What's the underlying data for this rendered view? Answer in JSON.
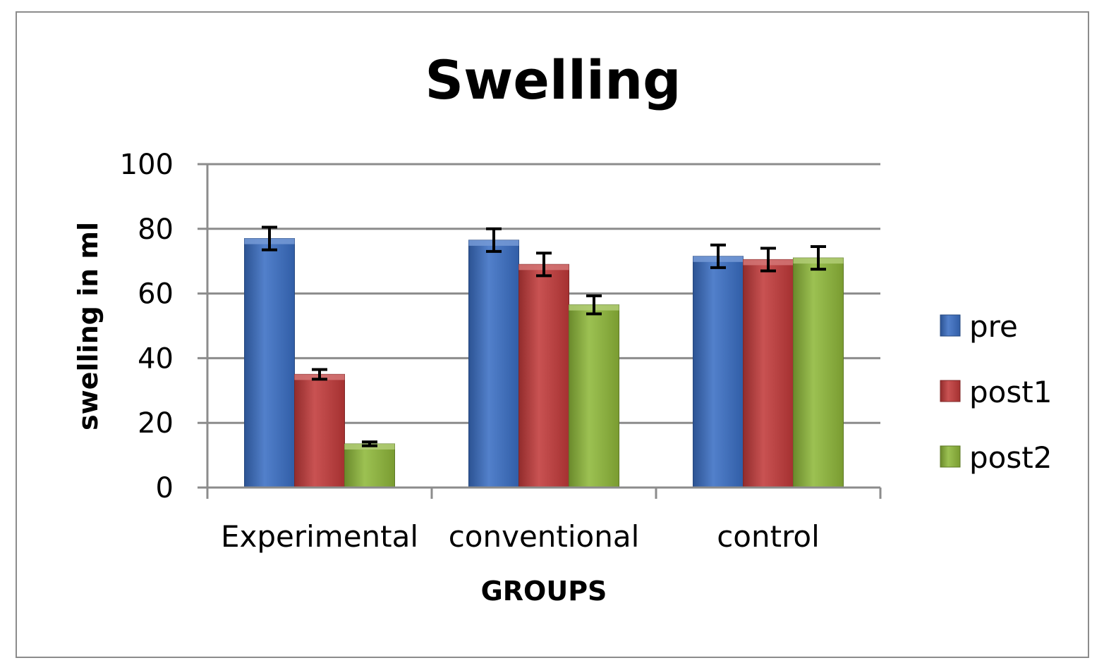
{
  "chart_data": {
    "type": "bar",
    "title": "Swelling",
    "xlabel": "GROUPS",
    "ylabel": "swelling in ml",
    "categories": [
      "Experimental",
      "conventional",
      "control"
    ],
    "ylim": [
      0,
      100
    ],
    "yticks": [
      0,
      20,
      40,
      60,
      80,
      100
    ],
    "grid": true,
    "legend_position": "right",
    "error_bars": true,
    "series": [
      {
        "name": "pre",
        "color": "#3a6fc4",
        "values": [
          77,
          76.5,
          71.5
        ],
        "errors": [
          3.5,
          3.5,
          3.5
        ]
      },
      {
        "name": "post1",
        "color": "#c23a3a",
        "values": [
          35,
          69,
          70.5
        ],
        "errors": [
          1.5,
          3.5,
          3.5
        ]
      },
      {
        "name": "post2",
        "color": "#8fb83a",
        "values": [
          13.5,
          56.5,
          71
        ],
        "errors": [
          0.6,
          2.8,
          3.5
        ]
      }
    ]
  }
}
